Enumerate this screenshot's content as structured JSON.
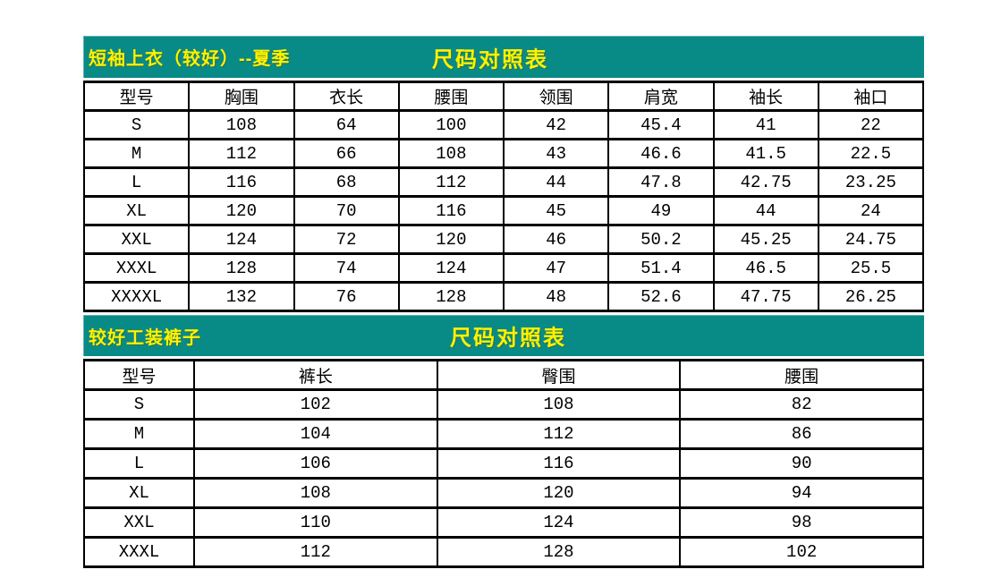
{
  "colors": {
    "teal": "#088B86",
    "yellow": "#FFF200",
    "border": "#000000",
    "background": "#FFFFFF"
  },
  "tables": [
    {
      "name": "shirt-size-chart",
      "title_left": "短袖上衣（较好）--夏季",
      "title_center": "尺码对照表",
      "headers": [
        "型号",
        "胸围",
        "衣长",
        "腰围",
        "领围",
        "肩宽",
        "袖长",
        "袖口"
      ],
      "rows": [
        [
          "S",
          "108",
          "64",
          "100",
          "42",
          "45.4",
          "41",
          "22"
        ],
        [
          "M",
          "112",
          "66",
          "108",
          "43",
          "46.6",
          "41.5",
          "22.5"
        ],
        [
          "L",
          "116",
          "68",
          "112",
          "44",
          "47.8",
          "42.75",
          "23.25"
        ],
        [
          "XL",
          "120",
          "70",
          "116",
          "45",
          "49",
          "44",
          "24"
        ],
        [
          "XXL",
          "124",
          "72",
          "120",
          "46",
          "50.2",
          "45.25",
          "24.75"
        ],
        [
          "XXXL",
          "128",
          "74",
          "124",
          "47",
          "51.4",
          "46.5",
          "25.5"
        ],
        [
          "XXXXL",
          "132",
          "76",
          "128",
          "48",
          "52.6",
          "47.75",
          "26.25"
        ]
      ]
    },
    {
      "name": "pants-size-chart",
      "title_left": "较好工装裤子",
      "title_center": "尺码对照表",
      "headers": [
        "型号",
        "裤长",
        "臀围",
        "腰围"
      ],
      "rows": [
        [
          "S",
          "102",
          "108",
          "82"
        ],
        [
          "M",
          "104",
          "112",
          "86"
        ],
        [
          "L",
          "106",
          "116",
          "90"
        ],
        [
          "XL",
          "108",
          "120",
          "94"
        ],
        [
          "XXL",
          "110",
          "124",
          "98"
        ],
        [
          "XXXL",
          "112",
          "128",
          "102"
        ]
      ]
    }
  ]
}
